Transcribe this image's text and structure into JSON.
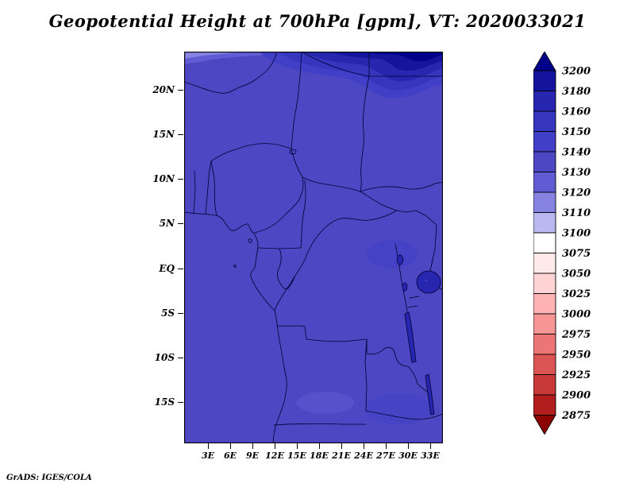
{
  "header": {
    "title": "Geopotential Height at 700hPa [gpm], VT: 2020033021"
  },
  "footer": {
    "attribution": "GrADS: IGES/COLA"
  },
  "chart_data": {
    "type": "heatmap",
    "title": "Geopotential Height at 700hPa [gpm], VT: 2020033021",
    "variable": "Geopotential Height",
    "level": "700hPa",
    "units": "gpm",
    "valid_time": "2020033021",
    "x_axis": {
      "tick_labels": [
        "3E",
        "6E",
        "9E",
        "12E",
        "15E",
        "18E",
        "21E",
        "24E",
        "27E",
        "30E",
        "33E"
      ]
    },
    "y_axis": {
      "tick_labels": [
        "20N",
        "15N",
        "10N",
        "5N",
        "EQ",
        "5S",
        "10S",
        "15S"
      ]
    },
    "colorbar": {
      "orientation": "vertical",
      "levels": [
        "3200",
        "3180",
        "3160",
        "3150",
        "3140",
        "3130",
        "3120",
        "3110",
        "3100",
        "3075",
        "3050",
        "3025",
        "3000",
        "2975",
        "2950",
        "2925",
        "2900",
        "2875"
      ],
      "colors": [
        "#00008b",
        "#14149e",
        "#2626b0",
        "#3535be",
        "#413ec8",
        "#4d47c4",
        "#615cd4",
        "#8683e2",
        "#b9b8f0",
        "#ffffff",
        "#ffeaea",
        "#ffd3d3",
        "#ffb3b3",
        "#f89595",
        "#ec7575",
        "#dc5555",
        "#c83a3a",
        "#b21d1d",
        "#8b0000"
      ]
    },
    "field_summary": {
      "dominant_band_gpm": "3130-3140",
      "north_edge_values_gpm": "increase to above 3200 along the northern boundary (~24N)",
      "south_domain_values_gpm": "mostly 3130-3140 with small 3120-3130 patches",
      "domain": "approx 0E-35E, 20S-24N (West/Central Africa)"
    }
  }
}
